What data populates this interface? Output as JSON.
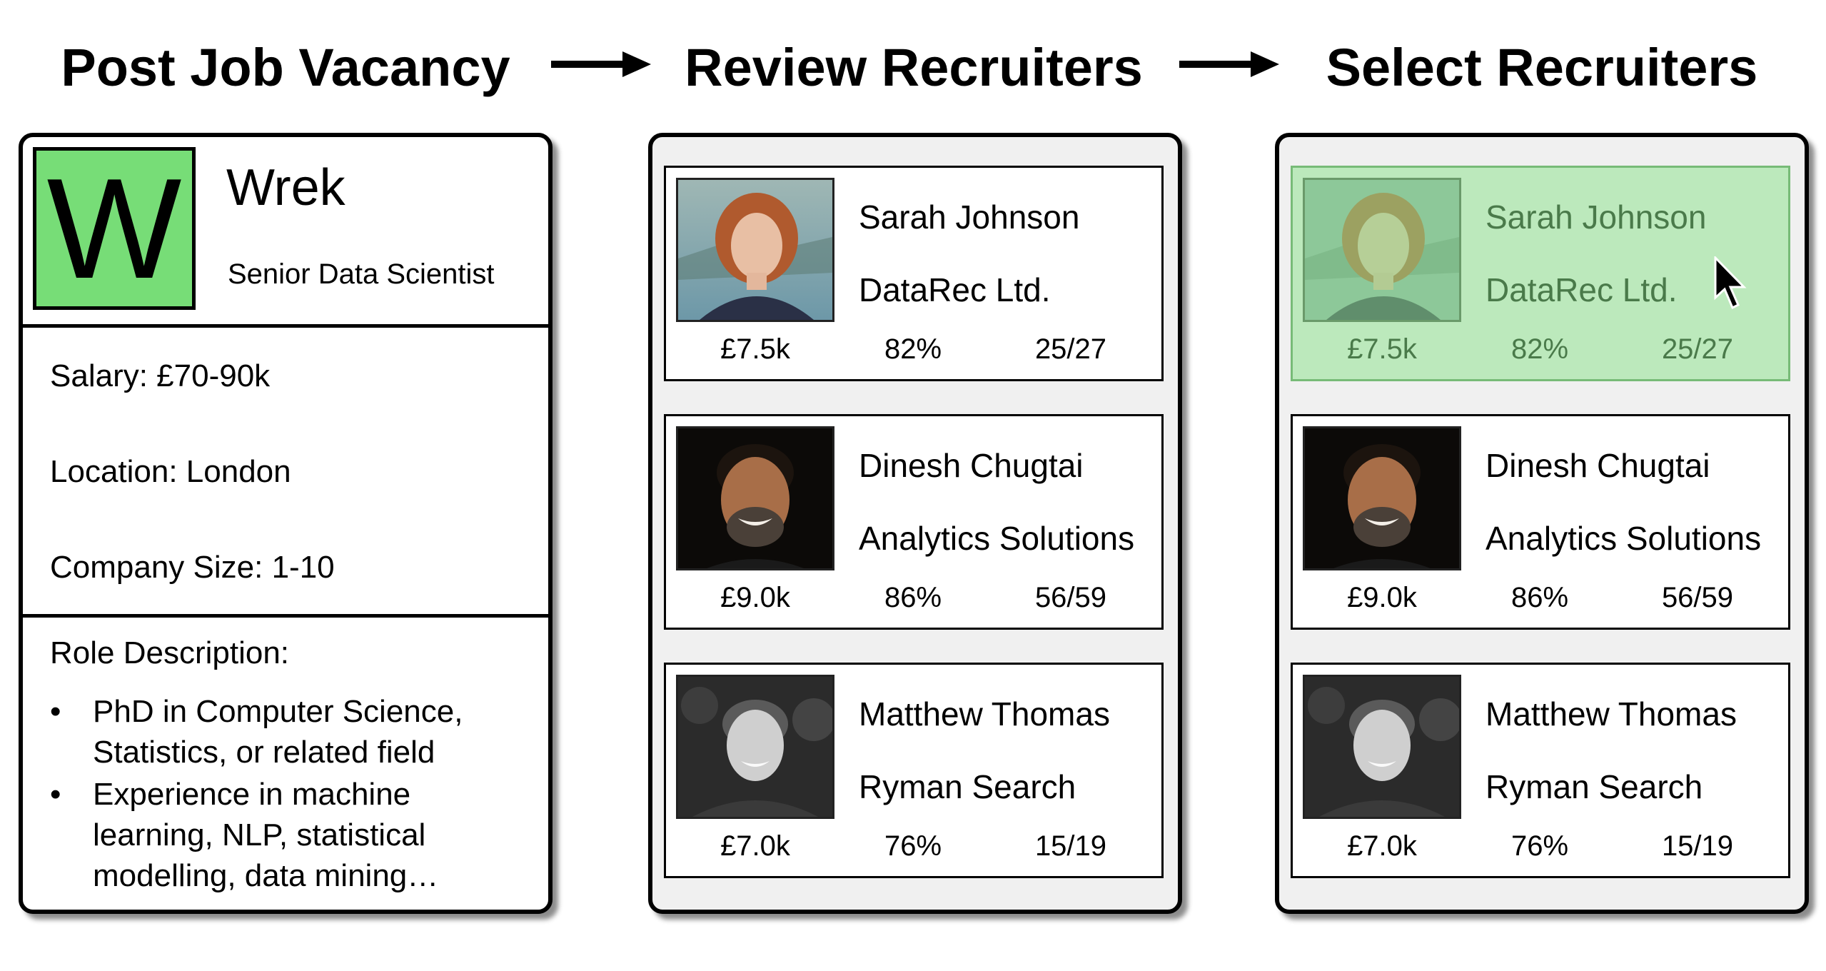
{
  "steps": [
    {
      "title": "Post Job Vacancy"
    },
    {
      "title": "Review Recruiters"
    },
    {
      "title": "Select Recruiters"
    }
  ],
  "job": {
    "logo_letter": "W",
    "logo_color": "#77dd77",
    "company": "Wrek",
    "title": "Senior Data Scientist",
    "salary": "Salary: £70-90k",
    "location": "Location: London",
    "company_size": "Company Size: 1-10",
    "role_label": "Role Description:",
    "bullet_char": "•",
    "bullets": [
      "PhD in Computer Science, Statistics, or related field",
      "Experience in machine learning, NLP, statistical modelling, data mining…"
    ]
  },
  "recruiters": [
    {
      "name": "Sarah Johnson",
      "company": "DataRec Ltd.",
      "fee": "£7.5k",
      "rate": "82%",
      "score": "25/27"
    },
    {
      "name": "Dinesh Chugtai",
      "company": "Analytics Solutions",
      "fee": "£9.0k",
      "rate": "86%",
      "score": "56/59"
    },
    {
      "name": "Matthew Thomas",
      "company": "Ryman Search",
      "fee": "£7.0k",
      "rate": "76%",
      "score": "15/19"
    }
  ],
  "selected_color": "#bce9bc",
  "icons": {
    "arrow": "right-arrow-icon",
    "cursor": "mouse-pointer-icon"
  }
}
